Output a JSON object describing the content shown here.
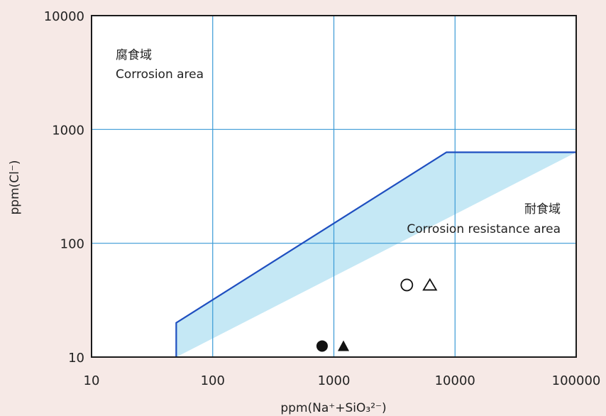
{
  "chart_data": {
    "type": "scatter",
    "title": "",
    "xlabel": "ppm(Na⁺+SiO₃²⁻)",
    "ylabel": "ppm(Cl⁻)",
    "x_scale": "log",
    "y_scale": "log",
    "xlim": [
      10,
      100000
    ],
    "ylim": [
      10,
      10000
    ],
    "x_ticks": [
      "10",
      "100",
      "1000",
      "10000",
      "100000"
    ],
    "y_ticks": [
      "10",
      "100",
      "1000",
      "10000"
    ],
    "grid": true,
    "regions": [
      {
        "name_ja": "腐食域",
        "name_en": "Corrosion area"
      },
      {
        "name_ja": "耐食域",
        "name_en": "Corrosion resistance area"
      }
    ],
    "boundary": {
      "points": [
        [
          50,
          10
        ],
        [
          50,
          20
        ],
        [
          8500,
          630
        ],
        [
          100000,
          630
        ]
      ],
      "color": "#1f4fc0"
    },
    "resistance_fill": "#c5e8f5",
    "grid_color": "#3a9ad6",
    "series": [
      {
        "marker": "filled-circle",
        "points": [
          [
            800,
            12.5
          ]
        ]
      },
      {
        "marker": "filled-triangle",
        "points": [
          [
            1200,
            12.5
          ]
        ]
      },
      {
        "marker": "open-circle",
        "points": [
          [
            4000,
            43
          ]
        ]
      },
      {
        "marker": "open-triangle",
        "points": [
          [
            6200,
            43
          ]
        ]
      }
    ]
  }
}
